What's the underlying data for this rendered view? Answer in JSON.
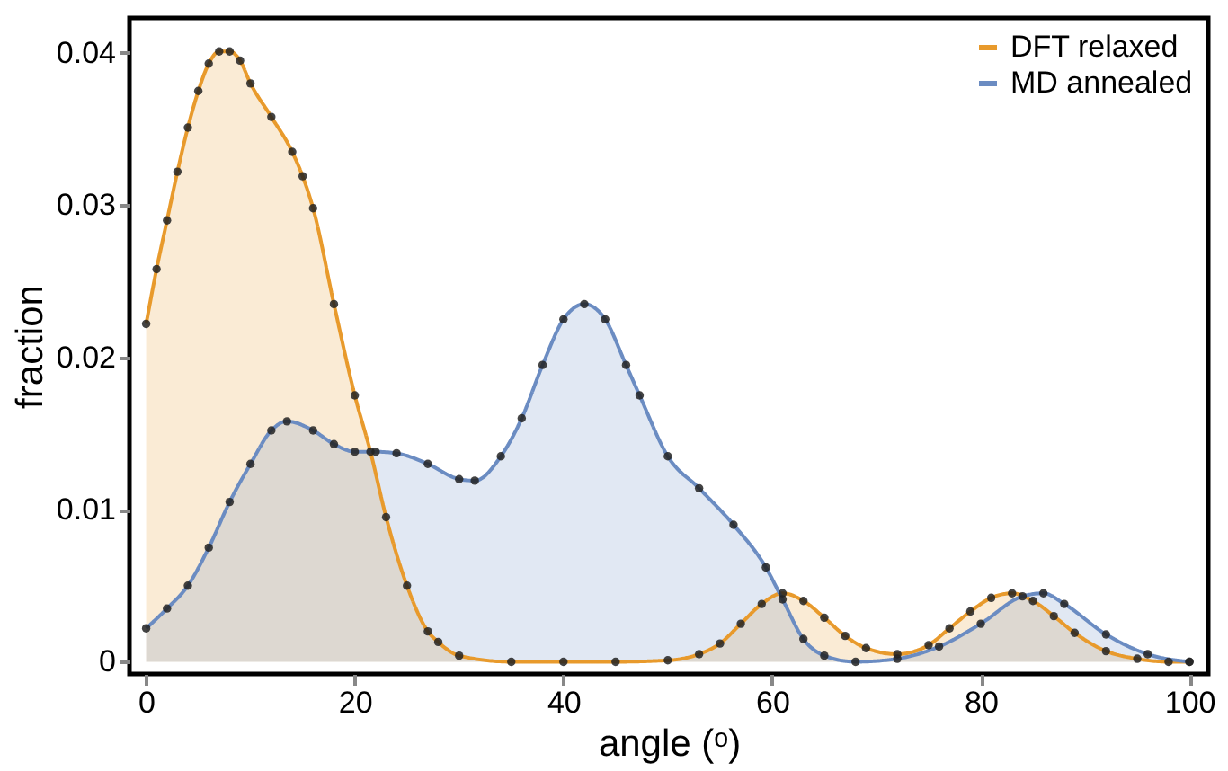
{
  "chart_data": {
    "type": "area",
    "xlabel": "angle (ᵒ)",
    "ylabel": "fraction",
    "xlim": [
      -1.6,
      101.8
    ],
    "ylim": [
      -0.0008,
      0.0423
    ],
    "xticks": [
      0,
      20,
      40,
      60,
      80,
      100
    ],
    "yticks": [
      0,
      0.01,
      0.02,
      0.03,
      0.04
    ],
    "grid": false,
    "legend": "top right",
    "marker": "circle",
    "line_style": "solid",
    "series": [
      {
        "name": "DFT relaxed",
        "color": "#e89a2c",
        "x": [
          0,
          1,
          2,
          3,
          4,
          5,
          6,
          7,
          8,
          9,
          10,
          12,
          14,
          15,
          16,
          18,
          20,
          21.5,
          23,
          25,
          27,
          28,
          30,
          35,
          40,
          45,
          50,
          53,
          55,
          57,
          59,
          61,
          63,
          65,
          67,
          69,
          72,
          75,
          77,
          79,
          81,
          83,
          85,
          87,
          89,
          92,
          95,
          98,
          100
        ],
        "values": [
          0.0222,
          0.0258,
          0.029,
          0.0322,
          0.0351,
          0.0375,
          0.0393,
          0.0401,
          0.0401,
          0.0395,
          0.038,
          0.0358,
          0.0335,
          0.0319,
          0.0298,
          0.0235,
          0.0175,
          0.0138,
          0.0095,
          0.005,
          0.002,
          0.0013,
          0.0004,
          0,
          0,
          0,
          0.0001,
          0.0005,
          0.0012,
          0.0025,
          0.0038,
          0.0045,
          0.004,
          0.0029,
          0.0017,
          0.0009,
          0.0005,
          0.0011,
          0.0022,
          0.0033,
          0.0042,
          0.0045,
          0.004,
          0.003,
          0.0019,
          0.0007,
          0.0002,
          0,
          0
        ]
      },
      {
        "name": "MD annealed",
        "color": "#6b8cc2",
        "x": [
          0,
          2,
          4,
          6,
          8,
          10,
          12,
          13.5,
          16,
          18,
          20,
          22,
          24,
          27,
          30,
          31.5,
          34,
          36,
          38,
          40,
          42,
          44,
          46,
          47.3,
          50,
          53,
          56.3,
          59.4,
          61,
          63,
          65,
          68,
          72,
          76,
          80,
          84,
          86,
          88,
          92,
          96,
          100
        ],
        "values": [
          0.0022,
          0.0035,
          0.005,
          0.0075,
          0.0105,
          0.013,
          0.0152,
          0.0158,
          0.0152,
          0.0143,
          0.0138,
          0.0138,
          0.0137,
          0.013,
          0.012,
          0.0119,
          0.0135,
          0.016,
          0.0195,
          0.0225,
          0.0235,
          0.0225,
          0.0195,
          0.0175,
          0.0135,
          0.0114,
          0.009,
          0.0062,
          0.0041,
          0.0015,
          0.0004,
          0,
          0.0002,
          0.001,
          0.0025,
          0.0043,
          0.0045,
          0.0038,
          0.0018,
          0.0005,
          0
        ]
      }
    ]
  }
}
